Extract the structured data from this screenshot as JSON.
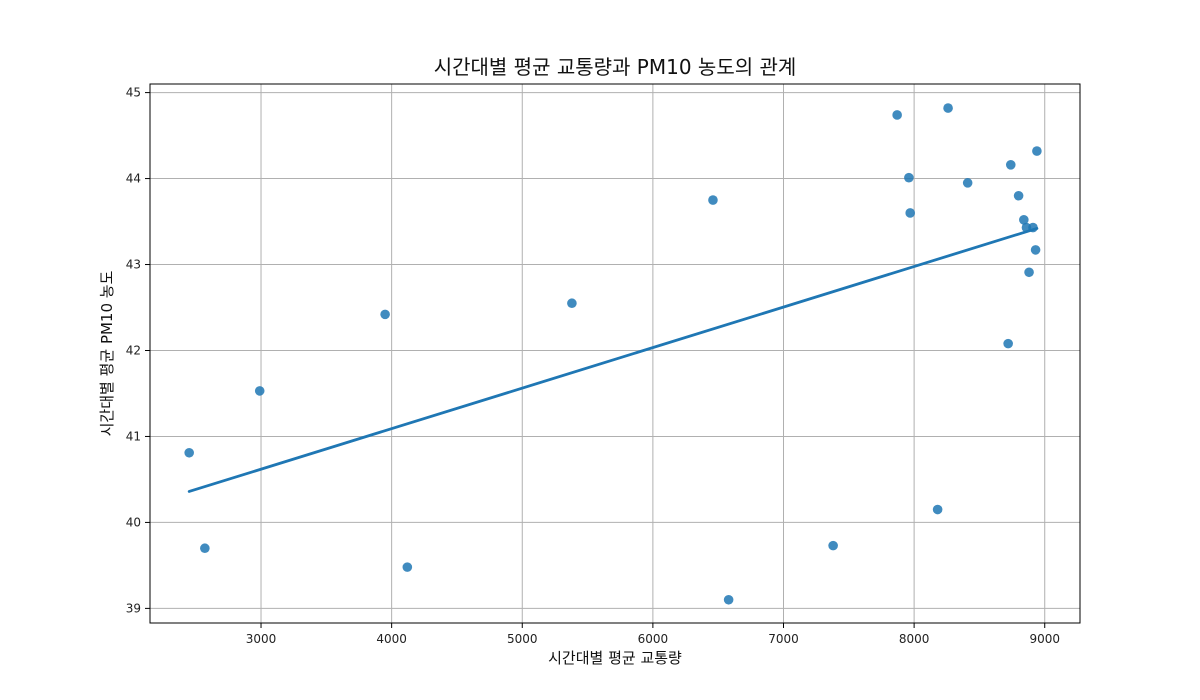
{
  "chart_data": {
    "type": "scatter",
    "title": "시간대별 평균 교통량과 PM10 농도의 관계",
    "xlabel": "시간대별 평균 교통량",
    "ylabel": "시간대별 평균 PM10 농도",
    "xlim": [
      2150,
      9270
    ],
    "ylim": [
      38.83,
      45.1
    ],
    "xticks": [
      3000,
      4000,
      5000,
      6000,
      7000,
      8000,
      9000
    ],
    "yticks": [
      39,
      40,
      41,
      42,
      43,
      44,
      45
    ],
    "grid": true,
    "colors": {
      "points": "#1f77b4",
      "line": "#1f77b4",
      "grid": "#b0b0b0",
      "axes": "#000000"
    },
    "points": [
      {
        "x": 2450,
        "y": 40.81
      },
      {
        "x": 2570,
        "y": 39.7
      },
      {
        "x": 2990,
        "y": 41.53
      },
      {
        "x": 3950,
        "y": 42.42
      },
      {
        "x": 4120,
        "y": 39.48
      },
      {
        "x": 5380,
        "y": 42.55
      },
      {
        "x": 6460,
        "y": 43.75
      },
      {
        "x": 6580,
        "y": 39.1
      },
      {
        "x": 7380,
        "y": 39.73
      },
      {
        "x": 7870,
        "y": 44.74
      },
      {
        "x": 7960,
        "y": 44.01
      },
      {
        "x": 7970,
        "y": 43.6
      },
      {
        "x": 8180,
        "y": 40.15
      },
      {
        "x": 8260,
        "y": 44.82
      },
      {
        "x": 8410,
        "y": 43.95
      },
      {
        "x": 8720,
        "y": 42.08
      },
      {
        "x": 8740,
        "y": 44.16
      },
      {
        "x": 8800,
        "y": 43.8
      },
      {
        "x": 8840,
        "y": 43.52
      },
      {
        "x": 8860,
        "y": 43.43
      },
      {
        "x": 8880,
        "y": 42.91
      },
      {
        "x": 8910,
        "y": 43.43
      },
      {
        "x": 8930,
        "y": 43.17
      },
      {
        "x": 8940,
        "y": 44.32
      }
    ],
    "regression_line": {
      "x": [
        2450,
        8940
      ],
      "y": [
        40.36,
        43.42
      ]
    }
  }
}
